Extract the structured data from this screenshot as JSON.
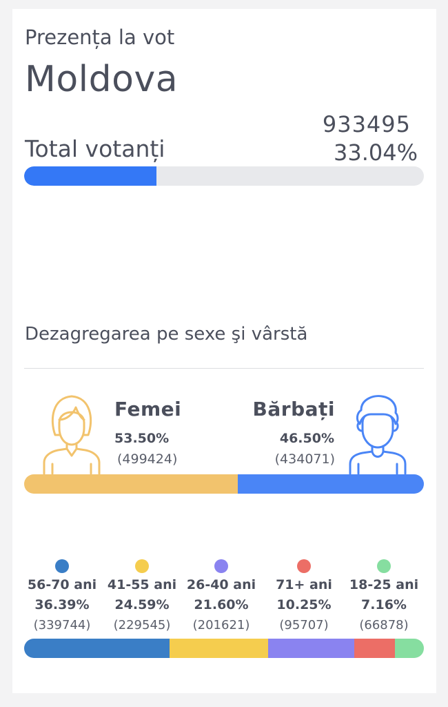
{
  "header": {
    "subtitle": "Prezența la vot",
    "region": "Moldova"
  },
  "total": {
    "label": "Total votanți",
    "count": "933495",
    "percent": "33.04%",
    "fraction": 0.3304
  },
  "breakdown": {
    "title": "Dezagregarea pe sexe şi vârstă"
  },
  "gender": {
    "female": {
      "label": "Femei",
      "percent": "53.50%",
      "count": "(499424)",
      "fraction": 0.535,
      "color": "#f2c36d"
    },
    "male": {
      "label": "Bărbați",
      "percent": "46.50%",
      "count": "(434071)",
      "fraction": 0.465,
      "color": "#4a85f6"
    }
  },
  "age_groups": [
    {
      "label": "56-70 ani",
      "percent": "36.39%",
      "count": "(339744)",
      "fraction": 0.3639,
      "color": "#3a7ec6"
    },
    {
      "label": "41-55 ani",
      "percent": "24.59%",
      "count": "(229545)",
      "fraction": 0.2459,
      "color": "#f5cd4e"
    },
    {
      "label": "26-40 ani",
      "percent": "21.60%",
      "count": "(201621)",
      "fraction": 0.216,
      "color": "#8a83f0"
    },
    {
      "label": "71+ ani",
      "percent": "10.25%",
      "count": "(95707)",
      "fraction": 0.1025,
      "color": "#ec6e66"
    },
    {
      "label": "18-25 ani",
      "percent": "7.16%",
      "count": "(66878)",
      "fraction": 0.0716,
      "color": "#86dea0"
    }
  ],
  "colors": {
    "primary_bar": "#3478f6",
    "bar_track": "#e8e9ec",
    "female_icon": "#f2c36d",
    "male_icon": "#4a85f6"
  }
}
